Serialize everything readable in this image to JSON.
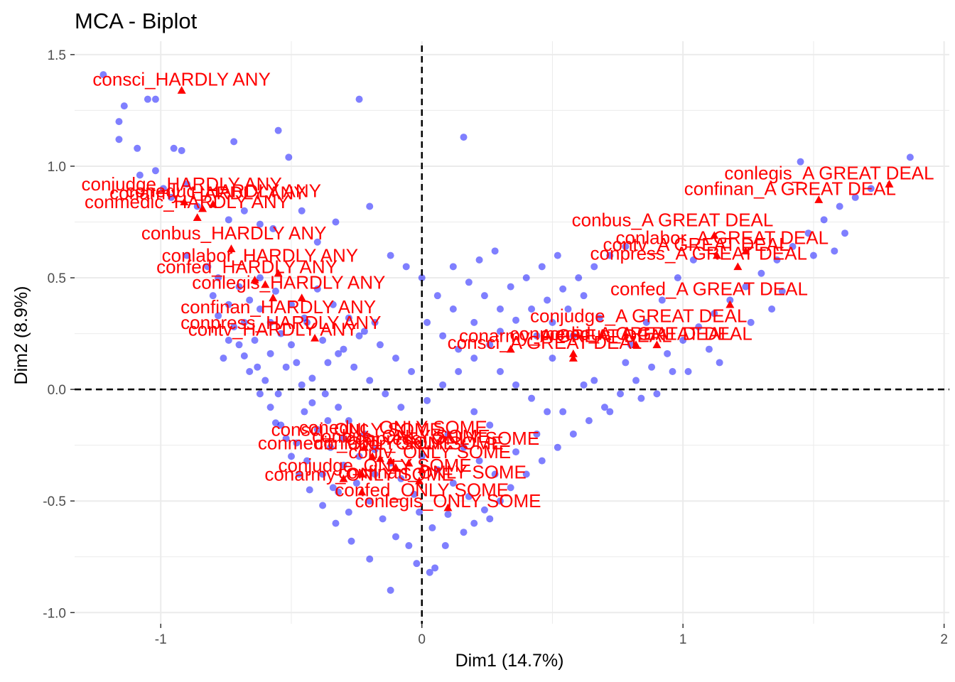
{
  "chart_data": {
    "type": "scatter",
    "title": "MCA - Biplot",
    "xlabel": "Dim1 (14.7%)",
    "ylabel": "Dim2 (8.9%)",
    "xlim": [
      -1.33,
      2.02
    ],
    "ylim": [
      -1.05,
      1.56
    ],
    "x_ticks": [
      -1,
      0,
      1,
      2
    ],
    "x_tick_labels": [
      "-1",
      "0",
      "1",
      "2"
    ],
    "y_ticks": [
      -1.0,
      -0.5,
      0.0,
      0.5,
      1.0,
      1.5
    ],
    "y_tick_labels": [
      "-1.0",
      "-0.5",
      "0.0",
      "0.5",
      "1.0",
      "1.5"
    ],
    "grid": true,
    "reference_lines": {
      "x": 0,
      "y": 0,
      "style": "dashed"
    },
    "colors": {
      "individuals": "#0000ff",
      "categories": "#ff0000",
      "grid": "#ebebeb",
      "reference": "#000000"
    },
    "individuals_approx": [
      [
        -1.22,
        1.41
      ],
      [
        -1.05,
        1.3
      ],
      [
        -1.02,
        1.3
      ],
      [
        -1.14,
        1.27
      ],
      [
        -1.16,
        1.2
      ],
      [
        -1.16,
        1.12
      ],
      [
        -1.09,
        1.08
      ],
      [
        -0.95,
        1.08
      ],
      [
        -0.92,
        1.07
      ],
      [
        -0.72,
        1.11
      ],
      [
        -0.55,
        1.16
      ],
      [
        -0.51,
        1.04
      ],
      [
        -0.24,
        1.3
      ],
      [
        0.16,
        1.13
      ],
      [
        -1.08,
        0.96
      ],
      [
        -1.02,
        0.98
      ],
      [
        -0.99,
        0.9
      ],
      [
        -0.96,
        0.86
      ],
      [
        -0.9,
        0.92
      ],
      [
        -0.86,
        0.82
      ],
      [
        -0.74,
        0.76
      ],
      [
        -0.68,
        0.8
      ],
      [
        -0.62,
        0.74
      ],
      [
        -0.57,
        0.72
      ],
      [
        -0.46,
        0.8
      ],
      [
        -0.4,
        0.66
      ],
      [
        -0.33,
        0.75
      ],
      [
        -0.2,
        0.82
      ],
      [
        -0.9,
        0.6
      ],
      [
        -0.82,
        0.55
      ],
      [
        -0.78,
        0.5
      ],
      [
        -0.7,
        0.46
      ],
      [
        -0.66,
        0.4
      ],
      [
        -0.62,
        0.36
      ],
      [
        -0.58,
        0.3
      ],
      [
        -0.54,
        0.25
      ],
      [
        -0.5,
        0.2
      ],
      [
        -0.74,
        0.22
      ],
      [
        -0.68,
        0.15
      ],
      [
        -0.63,
        0.1
      ],
      [
        -0.6,
        0.04
      ],
      [
        -0.55,
        -0.02
      ],
      [
        -0.48,
        0.12
      ],
      [
        -0.42,
        0.05
      ],
      [
        -0.37,
        -0.02
      ],
      [
        -0.32,
        -0.08
      ],
      [
        -0.28,
        -0.14
      ],
      [
        -0.22,
        -0.2
      ],
      [
        -0.18,
        -0.27
      ],
      [
        -0.12,
        -0.33
      ],
      [
        -0.08,
        -0.4
      ],
      [
        -0.03,
        -0.47
      ],
      [
        -0.01,
        -0.55
      ],
      [
        0.04,
        -0.62
      ],
      [
        0.09,
        -0.7
      ],
      [
        -0.12,
        -0.9
      ],
      [
        0.05,
        -0.8
      ],
      [
        -0.2,
        -0.76
      ],
      [
        -0.27,
        -0.68
      ],
      [
        -0.33,
        -0.6
      ],
      [
        -0.38,
        -0.52
      ],
      [
        -0.43,
        -0.45
      ],
      [
        -0.47,
        -0.38
      ],
      [
        -0.5,
        -0.3
      ],
      [
        -0.52,
        -0.22
      ],
      [
        -0.56,
        -0.15
      ],
      [
        0.02,
        -0.05
      ],
      [
        0.08,
        0.02
      ],
      [
        0.14,
        0.08
      ],
      [
        0.2,
        0.14
      ],
      [
        0.26,
        0.2
      ],
      [
        0.3,
        0.26
      ],
      [
        0.36,
        0.31
      ],
      [
        0.42,
        0.36
      ],
      [
        0.48,
        0.4
      ],
      [
        0.54,
        0.45
      ],
      [
        0.6,
        0.5
      ],
      [
        0.66,
        0.55
      ],
      [
        0.72,
        0.6
      ],
      [
        0.78,
        0.64
      ],
      [
        0.1,
        -0.2
      ],
      [
        0.16,
        -0.26
      ],
      [
        0.22,
        -0.32
      ],
      [
        0.28,
        -0.38
      ],
      [
        0.34,
        -0.44
      ],
      [
        0.4,
        -0.38
      ],
      [
        0.46,
        -0.32
      ],
      [
        0.52,
        -0.26
      ],
      [
        0.58,
        -0.2
      ],
      [
        0.64,
        -0.14
      ],
      [
        0.7,
        -0.08
      ],
      [
        0.76,
        -0.02
      ],
      [
        0.82,
        0.04
      ],
      [
        0.88,
        0.1
      ],
      [
        0.94,
        0.16
      ],
      [
        1.0,
        0.22
      ],
      [
        1.06,
        0.28
      ],
      [
        1.12,
        0.34
      ],
      [
        1.18,
        0.4
      ],
      [
        1.24,
        0.46
      ],
      [
        1.3,
        0.52
      ],
      [
        1.36,
        0.58
      ],
      [
        1.42,
        0.64
      ],
      [
        1.48,
        0.7
      ],
      [
        1.54,
        0.76
      ],
      [
        1.6,
        0.82
      ],
      [
        1.66,
        0.86
      ],
      [
        1.72,
        0.9
      ],
      [
        1.87,
        1.04
      ],
      [
        1.45,
        1.02
      ],
      [
        0.3,
        0.08
      ],
      [
        0.36,
        0.02
      ],
      [
        0.42,
        -0.04
      ],
      [
        0.48,
        -0.1
      ],
      [
        0.2,
        0.3
      ],
      [
        0.12,
        0.36
      ],
      [
        0.06,
        0.42
      ],
      [
        0.0,
        0.5
      ],
      [
        -0.06,
        0.55
      ],
      [
        -0.12,
        0.6
      ],
      [
        -0.18,
        0.3
      ],
      [
        -0.24,
        0.24
      ],
      [
        -0.3,
        0.18
      ],
      [
        -0.36,
        0.12
      ],
      [
        0.86,
        0.3
      ],
      [
        0.92,
        0.4
      ],
      [
        0.98,
        0.5
      ],
      [
        1.04,
        0.58
      ],
      [
        1.1,
        0.18
      ],
      [
        0.96,
        0.08
      ],
      [
        0.8,
        0.2
      ],
      [
        0.68,
        0.32
      ],
      [
        0.58,
        0.24
      ],
      [
        0.5,
        0.14
      ],
      [
        0.62,
        0.02
      ],
      [
        0.72,
        -0.1
      ],
      [
        0.84,
        -0.04
      ],
      [
        -0.4,
        0.45
      ],
      [
        -0.34,
        0.38
      ],
      [
        -0.28,
        0.32
      ],
      [
        -0.22,
        0.26
      ],
      [
        -0.16,
        0.2
      ],
      [
        -0.1,
        0.14
      ],
      [
        -0.04,
        0.08
      ],
      [
        -0.44,
        0.3
      ],
      [
        -0.38,
        0.22
      ],
      [
        -0.32,
        0.16
      ],
      [
        -0.26,
        0.1
      ],
      [
        -0.2,
        0.04
      ],
      [
        -0.14,
        -0.02
      ],
      [
        -0.08,
        -0.08
      ],
      [
        -0.45,
        -0.1
      ],
      [
        -0.4,
        -0.18
      ],
      [
        -0.35,
        -0.26
      ],
      [
        -0.3,
        -0.34
      ],
      [
        -0.25,
        -0.42
      ],
      [
        -0.2,
        -0.5
      ],
      [
        -0.15,
        -0.58
      ],
      [
        -0.1,
        -0.66
      ],
      [
        0.0,
        -0.3
      ],
      [
        0.06,
        -0.36
      ],
      [
        0.12,
        -0.42
      ],
      [
        0.18,
        -0.48
      ],
      [
        0.24,
        -0.54
      ],
      [
        0.3,
        -0.5
      ],
      [
        0.36,
        -0.28
      ],
      [
        0.44,
        -0.2
      ],
      [
        0.54,
        -0.1
      ],
      [
        0.66,
        0.04
      ],
      [
        0.78,
        0.12
      ],
      [
        0.9,
        -0.02
      ],
      [
        1.02,
        0.08
      ],
      [
        1.14,
        0.12
      ],
      [
        1.26,
        0.3
      ],
      [
        1.38,
        0.44
      ],
      [
        1.5,
        0.6
      ],
      [
        1.62,
        0.7
      ],
      [
        1.58,
        0.62
      ],
      [
        1.34,
        0.36
      ],
      [
        -0.62,
        0.5
      ],
      [
        -0.56,
        0.44
      ],
      [
        -0.5,
        0.38
      ],
      [
        -0.45,
        0.32
      ],
      [
        -0.68,
        0.3
      ],
      [
        -0.64,
        0.22
      ],
      [
        -0.58,
        0.16
      ],
      [
        -0.52,
        0.1
      ],
      [
        -0.46,
        0.02
      ],
      [
        -0.42,
        -0.06
      ],
      [
        -0.36,
        -0.14
      ],
      [
        -0.3,
        -0.22
      ],
      [
        -0.24,
        -0.3
      ],
      [
        -0.18,
        -0.38
      ],
      [
        0.02,
        0.3
      ],
      [
        0.08,
        0.24
      ],
      [
        0.14,
        0.18
      ],
      [
        0.2,
        -0.1
      ],
      [
        0.26,
        -0.16
      ],
      [
        0.1,
        -0.56
      ],
      [
        0.16,
        -0.64
      ],
      [
        0.2,
        -0.6
      ],
      [
        0.26,
        -0.58
      ],
      [
        -0.05,
        -0.7
      ],
      [
        -0.02,
        -0.78
      ],
      [
        0.03,
        -0.82
      ],
      [
        -0.28,
        -0.55
      ],
      [
        -0.34,
        -0.44
      ],
      [
        0.4,
        0.5
      ],
      [
        0.46,
        0.55
      ],
      [
        0.52,
        0.6
      ],
      [
        0.28,
        0.62
      ],
      [
        0.22,
        0.58
      ],
      [
        0.34,
        0.46
      ],
      [
        0.12,
        0.55
      ],
      [
        0.18,
        0.48
      ],
      [
        0.24,
        0.42
      ],
      [
        0.3,
        0.36
      ],
      [
        0.44,
        0.24
      ],
      [
        0.5,
        0.3
      ],
      [
        0.56,
        0.36
      ],
      [
        0.62,
        0.42
      ],
      [
        -0.78,
        0.33
      ],
      [
        -0.74,
        0.38
      ],
      [
        -0.8,
        0.42
      ],
      [
        -0.72,
        0.28
      ],
      [
        -0.7,
        0.2
      ],
      [
        -0.76,
        0.14
      ],
      [
        -0.66,
        0.08
      ],
      [
        -0.62,
        -0.02
      ],
      [
        -0.58,
        -0.08
      ],
      [
        -0.54,
        -0.16
      ],
      [
        -0.48,
        -0.24
      ],
      [
        -0.44,
        -0.32
      ],
      [
        -0.38,
        -0.38
      ],
      [
        -0.32,
        -0.46
      ]
    ],
    "categories": [
      {
        "name": "consci_HARDLY ANY",
        "x": -0.92,
        "y": 1.34
      },
      {
        "name": "conjudge_HARDLY ANY",
        "x": -0.91,
        "y": 0.84
      },
      {
        "name": "coneduc_HARDLY ANY",
        "x": -0.84,
        "y": 0.81
      },
      {
        "name": "conarmy_HARDLY ANY",
        "x": -0.8,
        "y": 0.83
      },
      {
        "name": "conmedic_HARDLY ANY",
        "x": -0.86,
        "y": 0.77
      },
      {
        "name": "conbus_HARDLY ANY",
        "x": -0.73,
        "y": 0.63
      },
      {
        "name": "conlabor_HARDLY ANY",
        "x": -0.55,
        "y": 0.52
      },
      {
        "name": "confed_HARDLY ANY",
        "x": -0.64,
        "y": 0.49
      },
      {
        "name": "conlegis_HARDLY ANY",
        "x": -0.6,
        "y": 0.47
      },
      {
        "name": "confinan_HARDLY ANY",
        "x": -0.57,
        "y": 0.41
      },
      {
        "name": "conpress_HARDLY ANY",
        "x": -0.46,
        "y": 0.41
      },
      {
        "name": "contv_HARDLY ANY",
        "x": -0.41,
        "y": 0.23
      },
      {
        "name": "conlegis_A GREAT DEAL",
        "x": 1.79,
        "y": 0.92
      },
      {
        "name": "confinan_A GREAT DEAL",
        "x": 1.52,
        "y": 0.85
      },
      {
        "name": "conbus_A GREAT DEAL",
        "x": 1.12,
        "y": 0.69
      },
      {
        "name": "conlabor_A GREAT DEAL",
        "x": 1.24,
        "y": 0.62
      },
      {
        "name": "contv_A GREAT DEAL",
        "x": 1.13,
        "y": 0.6
      },
      {
        "name": "conpress_A GREAT DEAL",
        "x": 1.21,
        "y": 0.55
      },
      {
        "name": "confed_A GREAT DEAL",
        "x": 1.18,
        "y": 0.38
      },
      {
        "name": "conjudge_A GREAT DEAL",
        "x": 0.58,
        "y": 0.16
      },
      {
        "name": "conarmy_A GREAT DEAL",
        "x": 0.34,
        "y": 0.18
      },
      {
        "name": "conmedic_A GREAT DEAL",
        "x": 0.82,
        "y": 0.2
      },
      {
        "name": "coneduc_A GREAT DEAL",
        "x": 0.9,
        "y": 0.2
      },
      {
        "name": "consci_A GREAT DEAL",
        "x": 0.58,
        "y": 0.14
      },
      {
        "name": "consci_ONLY SOME",
        "x": -0.22,
        "y": -0.26
      },
      {
        "name": "coneduc_ONLY SOME",
        "x": -0.16,
        "y": -0.31
      },
      {
        "name": "conmedic_ONLY SOME",
        "x": -0.19,
        "y": -0.3
      },
      {
        "name": "conbus_ONLY SOME",
        "x": -0.12,
        "y": -0.32
      },
      {
        "name": "conpress_ONLY SOME",
        "x": -0.05,
        "y": -0.33
      },
      {
        "name": "conlabor_ONLY SOME",
        "x": -0.1,
        "y": -0.35
      },
      {
        "name": "contv_ONLY SOME",
        "x": 0.0,
        "y": -0.36
      },
      {
        "name": "conjudge_ONLY SOME",
        "x": -0.23,
        "y": -0.38
      },
      {
        "name": "conarmy_ONLY SOME",
        "x": -0.3,
        "y": -0.4
      },
      {
        "name": "confinan_ONLY SOME",
        "x": -0.01,
        "y": -0.41
      },
      {
        "name": "confed_ONLY SOME",
        "x": -0.23,
        "y": -0.46
      },
      {
        "name": "conlegis_ONLY SOME",
        "x": 0.1,
        "y": -0.53
      }
    ],
    "labels_approx": [
      {
        "name": "consci_HARDLY ANY",
        "x": -0.92,
        "y": 1.39
      },
      {
        "name": "conjudge_HARDLY ANY",
        "x": -0.92,
        "y": 0.92
      },
      {
        "name": "coneduc_HARDLY ANY",
        "x": -0.76,
        "y": 0.89
      },
      {
        "name": "conarmy_HARDLY ANY",
        "x": -0.82,
        "y": 0.88
      },
      {
        "name": "conmedic_HARDLY ANY",
        "x": -0.9,
        "y": 0.84
      },
      {
        "name": "conbus_HARDLY ANY",
        "x": -0.72,
        "y": 0.7
      },
      {
        "name": "conlabor_HARDLY ANY",
        "x": -0.62,
        "y": 0.6
      },
      {
        "name": "confed_HARDLY ANY",
        "x": -0.67,
        "y": 0.55
      },
      {
        "name": "conlegis_HARDLY ANY",
        "x": -0.51,
        "y": 0.48
      },
      {
        "name": "confinan_HARDLY ANY",
        "x": -0.55,
        "y": 0.37
      },
      {
        "name": "conpress_HARDLY ANY",
        "x": -0.54,
        "y": 0.3
      },
      {
        "name": "contv_HARDLY ANY",
        "x": -0.57,
        "y": 0.27
      },
      {
        "name": "conlegis_A GREAT DEAL",
        "x": 1.56,
        "y": 0.97
      },
      {
        "name": "confinan_A GREAT DEAL",
        "x": 1.41,
        "y": 0.9
      },
      {
        "name": "conbus_A GREAT DEAL",
        "x": 0.96,
        "y": 0.76
      },
      {
        "name": "conlabor_A GREAT DEAL",
        "x": 1.15,
        "y": 0.68
      },
      {
        "name": "contv_A GREAT DEAL",
        "x": 1.05,
        "y": 0.65
      },
      {
        "name": "conpress_A GREAT DEAL",
        "x": 1.06,
        "y": 0.61
      },
      {
        "name": "confed_A GREAT DEAL",
        "x": 1.1,
        "y": 0.45
      },
      {
        "name": "conjudge_A GREAT DEAL",
        "x": 0.83,
        "y": 0.33
      },
      {
        "name": "conarmy_A GREAT DEAL",
        "x": 0.55,
        "y": 0.24
      },
      {
        "name": "conmedic_A GREAT DEAL",
        "x": 0.76,
        "y": 0.25
      },
      {
        "name": "coneduc_A GREAT DEAL",
        "x": 0.86,
        "y": 0.25
      },
      {
        "name": "consci_A GREAT DEAL",
        "x": 0.47,
        "y": 0.21
      },
      {
        "name": "consci_ONLY SOME",
        "x": -0.25,
        "y": -0.18
      },
      {
        "name": "coneduc_ONLY SOME",
        "x": -0.11,
        "y": -0.17
      },
      {
        "name": "conmedic_ONLY SOME",
        "x": -0.25,
        "y": -0.24
      },
      {
        "name": "conbus_ONLY SOME",
        "x": -0.08,
        "y": -0.21
      },
      {
        "name": "conpress_ONLY SOME",
        "x": 0.08,
        "y": -0.22
      },
      {
        "name": "conlabor_ONLY SOME",
        "x": -0.05,
        "y": -0.24
      },
      {
        "name": "contv_ONLY SOME",
        "x": 0.03,
        "y": -0.28
      },
      {
        "name": "conjudge_ONLY SOME",
        "x": -0.18,
        "y": -0.34
      },
      {
        "name": "conarmy_ONLY SOME",
        "x": -0.24,
        "y": -0.38
      },
      {
        "name": "confinan_ONLY SOME",
        "x": 0.04,
        "y": -0.37
      },
      {
        "name": "confed_ONLY SOME",
        "x": 0.0,
        "y": -0.45
      },
      {
        "name": "conlegis_ONLY SOME",
        "x": 0.1,
        "y": -0.5
      }
    ]
  }
}
